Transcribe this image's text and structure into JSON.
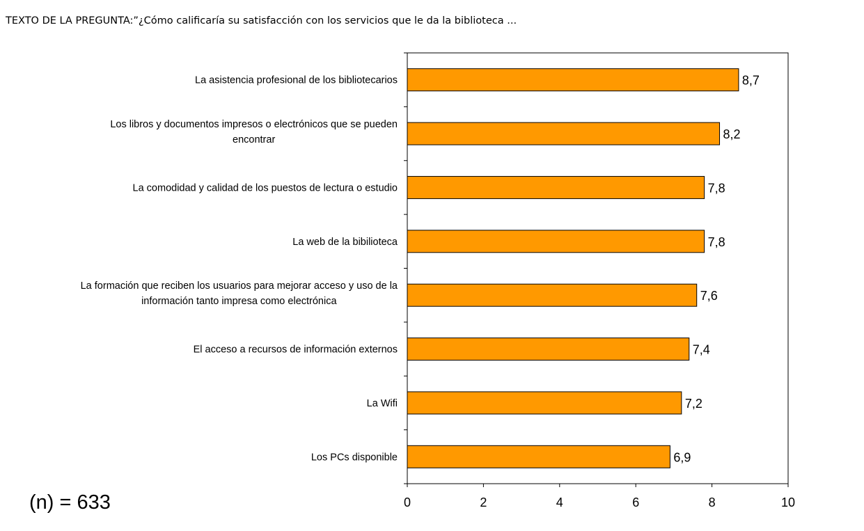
{
  "chart_data": {
    "type": "bar",
    "orientation": "horizontal",
    "title": "TEXTO DE LA PREGUNTA:”¿Cómo calificaría su satisfacción con los servicios que le da la biblioteca  ...",
    "categories": [
      [
        "La asistencia profesional de los bibliotecarios"
      ],
      [
        "Los libros y documentos impresos o electrónicos que se pueden",
        "encontrar"
      ],
      [
        "La comodidad y calidad de los puestos de lectura o estudio"
      ],
      [
        "La web de la bibilioteca"
      ],
      [
        "La formación que reciben los usuarios para mejorar acceso y uso de la",
        "información tanto impresa como electrónica"
      ],
      [
        "El acceso a recursos de información externos"
      ],
      [
        "La Wifi"
      ],
      [
        "Los PCs disponible"
      ]
    ],
    "values": [
      8.7,
      8.2,
      7.8,
      7.8,
      7.6,
      7.4,
      7.2,
      6.9
    ],
    "value_labels": [
      "8,7",
      "8,2",
      "7,8",
      "7,8",
      "7,6",
      "7,4",
      "7,2",
      "6,9"
    ],
    "xlim": [
      0,
      10
    ],
    "xticks": [
      "0",
      "2",
      "4",
      "6",
      "8",
      "10"
    ],
    "xlabel": "",
    "ylabel": "",
    "grid": false,
    "bar_color": "#FF9900",
    "annotation": "(n) = 633"
  }
}
